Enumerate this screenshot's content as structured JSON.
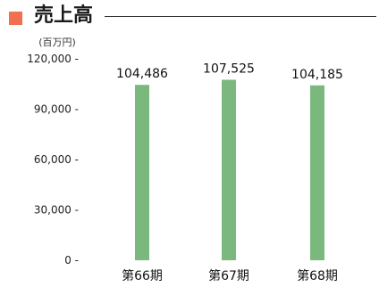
{
  "title": "売上高",
  "colors": {
    "title_marker": "#F07050",
    "bar": "#7BB87E",
    "axis_text": "#222222"
  },
  "chart_data": {
    "type": "bar",
    "title": "売上高",
    "unit_label": "(百万円)",
    "xlabel": "",
    "ylabel": "",
    "categories": [
      "第66期",
      "第67期",
      "第68期"
    ],
    "values": [
      104486,
      107525,
      104185
    ],
    "value_labels": [
      "104,486",
      "107,525",
      "104,185"
    ],
    "ylim": [
      0,
      120000
    ],
    "yticks": [
      0,
      30000,
      60000,
      90000,
      120000
    ],
    "ytick_labels": [
      "0 -",
      "30,000 -",
      "60,000 -",
      "90,000 -",
      "120,000 -"
    ],
    "grid": false,
    "legend": "none"
  }
}
